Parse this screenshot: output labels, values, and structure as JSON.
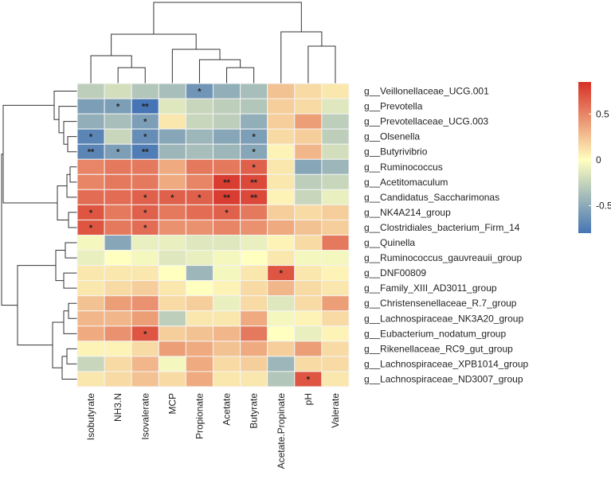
{
  "chart_data": {
    "type": "heatmap",
    "title": "",
    "columns": [
      "Isobutyrate",
      "NH3.N",
      "Isovalerate",
      "MCP",
      "Propionate",
      "Acetate",
      "Butyrate",
      "Acetate.Propinate",
      "pH",
      "Valerate"
    ],
    "rows": [
      "g__Veillonellaceae_UCG.001",
      "g__Prevotella",
      "g__Prevotellaceae_UCG.003",
      "g__Olsenella",
      "g__Butyrivibrio",
      "g__Ruminococcus",
      "g__Acetitomaculum",
      "g__Candidatus_Saccharimonas",
      "g__NK4A214_group",
      "g__Clostridiales_bacterium_Firm_14",
      "g__Quinella",
      "g__Ruminococcus_gauvreauii_group",
      "g__DNF00809",
      "g__Family_XIII_AD3011_group",
      "g__Christensenellaceae_R.7_group",
      "g__Lachnospiraceae_NK3A20_group",
      "g__Eubacterium_nodatum_group",
      "g__Rikenellaceae_RC9_gut_group",
      "g__Lachnospiraceae_XPB1014_group",
      "g__Lachnospiraceae_ND3007_group"
    ],
    "values": [
      [
        -0.3,
        -0.2,
        -0.35,
        -0.4,
        -0.65,
        -0.5,
        -0.4,
        0.25,
        0.15,
        0.1
      ],
      [
        -0.6,
        -0.6,
        -0.85,
        -0.15,
        -0.25,
        -0.3,
        -0.35,
        0.2,
        0.15,
        -0.15
      ],
      [
        -0.5,
        -0.4,
        -0.6,
        0.1,
        -0.25,
        -0.3,
        -0.5,
        0.2,
        0.4,
        -0.3
      ],
      [
        -0.75,
        -0.25,
        -0.7,
        -0.55,
        -0.45,
        -0.55,
        -0.6,
        0.15,
        0.2,
        -0.3
      ],
      [
        -0.75,
        -0.6,
        -0.8,
        -0.45,
        -0.4,
        -0.45,
        -0.55,
        0.05,
        0.3,
        -0.2
      ],
      [
        0.5,
        0.55,
        0.55,
        0.35,
        0.55,
        0.55,
        0.65,
        0.1,
        -0.55,
        -0.45
      ],
      [
        0.5,
        0.55,
        0.55,
        0.35,
        0.5,
        0.8,
        0.75,
        0.1,
        -0.3,
        -0.25
      ],
      [
        0.6,
        0.6,
        0.65,
        0.65,
        0.65,
        0.8,
        0.75,
        0.05,
        -0.25,
        -0.1
      ],
      [
        0.7,
        0.55,
        0.65,
        0.55,
        0.6,
        0.65,
        0.55,
        0.2,
        0.15,
        0.2
      ],
      [
        0.7,
        0.55,
        0.6,
        0.45,
        0.45,
        0.5,
        0.45,
        0.35,
        0.25,
        0.2
      ],
      [
        -0.05,
        -0.55,
        -0.1,
        -0.1,
        -0.15,
        -0.15,
        -0.1,
        0.05,
        0.15,
        0.55
      ],
      [
        -0.1,
        0.0,
        -0.05,
        -0.15,
        -0.1,
        -0.05,
        0.0,
        0.1,
        -0.05,
        -0.05
      ],
      [
        0.1,
        0.1,
        0.1,
        0.0,
        -0.45,
        -0.05,
        0.1,
        0.7,
        0.1,
        0.05
      ],
      [
        0.1,
        0.15,
        0.2,
        0.1,
        0.0,
        0.05,
        0.15,
        0.3,
        0.15,
        0.1
      ],
      [
        0.25,
        0.4,
        0.45,
        0.15,
        0.2,
        -0.1,
        0.15,
        -0.15,
        0.15,
        0.4
      ],
      [
        0.3,
        0.3,
        0.4,
        -0.3,
        0.1,
        0.1,
        0.35,
        -0.05,
        0.05,
        0.15
      ],
      [
        0.35,
        0.45,
        0.7,
        0.2,
        0.25,
        0.3,
        0.55,
        0.0,
        -0.1,
        0.05
      ],
      [
        0.05,
        0.05,
        0.15,
        0.4,
        0.35,
        0.25,
        0.35,
        0.2,
        0.4,
        0.15
      ],
      [
        -0.25,
        0.15,
        0.3,
        -0.05,
        0.35,
        0.15,
        0.2,
        -0.45,
        0.15,
        0.15
      ],
      [
        0.1,
        0.15,
        0.25,
        0.15,
        0.35,
        0.1,
        0.1,
        -0.35,
        0.7,
        0.1
      ]
    ],
    "significance": [
      [
        "",
        "",
        "",
        "",
        "*",
        "",
        "",
        "",
        "",
        ""
      ],
      [
        "",
        "*",
        "**",
        "",
        "",
        "",
        "",
        "",
        "",
        ""
      ],
      [
        "",
        "",
        "*",
        "",
        "",
        "",
        "",
        "",
        "",
        ""
      ],
      [
        "*",
        "",
        "*",
        "",
        "",
        "",
        "*",
        "",
        "",
        ""
      ],
      [
        "**",
        "*",
        "**",
        "",
        "",
        "",
        "*",
        "",
        "",
        ""
      ],
      [
        "",
        "",
        "",
        "",
        "",
        "",
        "*",
        "",
        "",
        ""
      ],
      [
        "",
        "",
        "",
        "",
        "",
        "**",
        "**",
        "",
        "",
        ""
      ],
      [
        "",
        "",
        "*",
        "*",
        "*",
        "**",
        "**",
        "",
        "",
        ""
      ],
      [
        "*",
        "",
        "*",
        "",
        "",
        "*",
        "",
        "",
        "",
        ""
      ],
      [
        "*",
        "",
        "*",
        "",
        "",
        "",
        "",
        "",
        "",
        ""
      ],
      [
        "",
        "",
        "",
        "",
        "",
        "",
        "",
        "",
        "",
        ""
      ],
      [
        "",
        "",
        "",
        "",
        "",
        "",
        "",
        "",
        "",
        ""
      ],
      [
        "",
        "",
        "",
        "",
        "",
        "",
        "",
        "*",
        "",
        ""
      ],
      [
        "",
        "",
        "",
        "",
        "",
        "",
        "",
        "",
        "",
        ""
      ],
      [
        "",
        "",
        "",
        "",
        "",
        "",
        "",
        "",
        "",
        ""
      ],
      [
        "",
        "",
        "",
        "",
        "",
        "",
        "",
        "",
        "",
        ""
      ],
      [
        "",
        "",
        "*",
        "",
        "",
        "",
        "",
        "",
        "",
        ""
      ],
      [
        "",
        "",
        "",
        "",
        "",
        "",
        "",
        "",
        "",
        ""
      ],
      [
        "",
        "",
        "",
        "",
        "",
        "",
        "",
        "",
        "",
        ""
      ],
      [
        "",
        "",
        "",
        "",
        "",
        "",
        "",
        "",
        "*",
        ""
      ]
    ],
    "colorscale": {
      "range": [
        -0.8,
        0.85
      ],
      "ticks": [
        0.5,
        0,
        -0.5
      ],
      "tick_labels": [
        "0.5",
        "0",
        "-0.5"
      ],
      "low_color": "#4575b4",
      "mid_color": "#ffffbf",
      "high_color": "#d73027"
    },
    "row_dendrogram": "shown left",
    "column_dendrogram": "shown top",
    "legend_position": "right"
  }
}
